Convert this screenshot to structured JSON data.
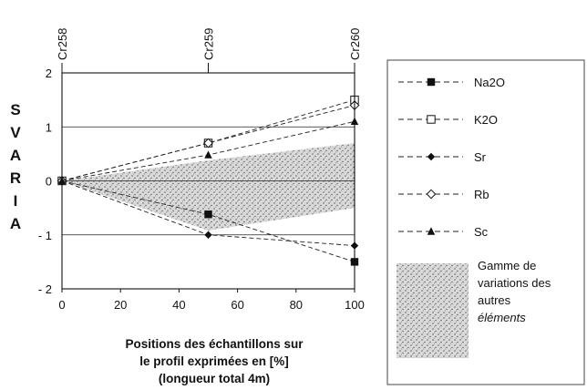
{
  "chart_data": {
    "type": "line",
    "x": [
      0,
      50,
      100
    ],
    "top_labels": [
      "Cr258",
      "Cr259",
      "Cr260"
    ],
    "ylabel_letters": [
      "S",
      "V",
      "A",
      "R",
      "I",
      "A"
    ],
    "xlabel_lines": [
      "Positions des échantillons sur",
      "le profil exprimées en [%]",
      "(longueur total 4m)"
    ],
    "xlim": [
      0,
      100
    ],
    "ylim": [
      -2,
      2
    ],
    "x_ticks": [
      0,
      20,
      40,
      60,
      80,
      100
    ],
    "x_tick_labels": [
      "0",
      "20",
      "40",
      "60",
      "80",
      "100"
    ],
    "y_ticks": [
      -2,
      -1,
      0,
      1,
      2
    ],
    "y_tick_labels": [
      "- 2",
      "- 1",
      "0",
      "1",
      "2"
    ],
    "grid": "horizontal",
    "legend_position": "right",
    "series": [
      {
        "name": "Na2O",
        "marker": "filled-square",
        "values": [
          0,
          -0.62,
          -1.5
        ]
      },
      {
        "name": "K2O",
        "marker": "open-square",
        "values": [
          0,
          0.7,
          1.5
        ]
      },
      {
        "name": "Sr",
        "marker": "filled-diamond",
        "values": [
          0,
          -1.0,
          -1.2
        ]
      },
      {
        "name": "Rb",
        "marker": "open-diamond",
        "values": [
          0,
          0.7,
          1.4
        ]
      },
      {
        "name": "Sc",
        "marker": "filled-triangle",
        "values": [
          0,
          0.48,
          1.1
        ]
      }
    ],
    "range_band": {
      "lines": [
        "Gamme de",
        "variations des",
        "autres",
        "éléments"
      ],
      "upper": [
        0,
        0.38,
        0.7
      ],
      "lower": [
        0,
        -0.92,
        -0.5
      ]
    }
  }
}
